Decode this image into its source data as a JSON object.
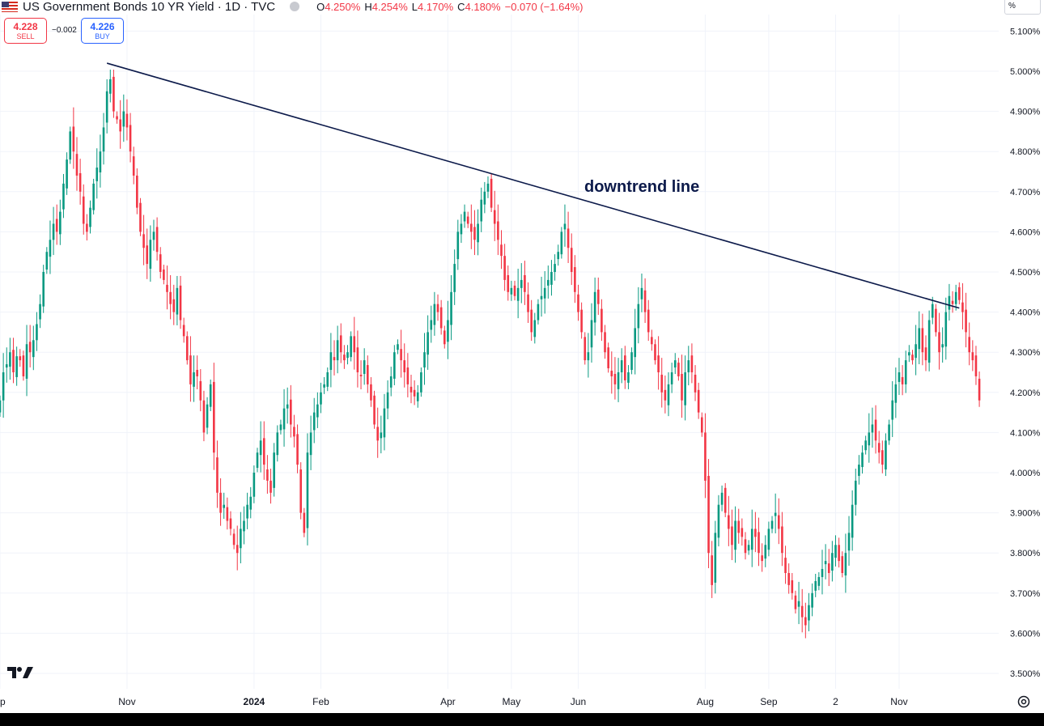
{
  "header": {
    "symbol_title": "US Government Bonds 10 YR Yield · 1D · TVC",
    "flag_icon": "us-flag-icon",
    "ohlc": {
      "o_label": "O",
      "o_value": "4.250%",
      "h_label": "H",
      "h_value": "4.254%",
      "l_label": "L",
      "l_value": "4.170%",
      "c_label": "C",
      "c_value": "4.180%",
      "change": "−0.070 (−1.64%)"
    },
    "value_color": "#f23645"
  },
  "trade": {
    "sell_price": "4.228",
    "sell_label": "SELL",
    "spread": "−0.002",
    "buy_price": "4.226",
    "buy_label": "BUY"
  },
  "axis_unit": "%",
  "annotation": {
    "text": "downtrend line"
  },
  "colors": {
    "up": "#089981",
    "down": "#f23645",
    "trendline": "#0c1a4a",
    "grid": "#f0f3fa"
  },
  "icons": {
    "settings": "settings-icon",
    "logo": "tradingview-logo"
  },
  "chart_data": {
    "type": "candlestick",
    "title": "US Government Bonds 10 YR Yield · 1D · TVC",
    "xlabel": "",
    "ylabel": "",
    "ylim": [
      3.45,
      5.17
    ],
    "y_ticks": [
      "5.100%",
      "5.000%",
      "4.900%",
      "4.800%",
      "4.700%",
      "4.600%",
      "4.500%",
      "4.400%",
      "4.300%",
      "4.200%",
      "4.100%",
      "4.000%",
      "3.900%",
      "3.800%",
      "3.700%",
      "3.600%",
      "3.500%"
    ],
    "y_tick_values": [
      5.1,
      5.0,
      4.9,
      4.8,
      4.7,
      4.6,
      4.5,
      4.4,
      4.3,
      4.2,
      4.1,
      4.0,
      3.9,
      3.8,
      3.7,
      3.6,
      3.5
    ],
    "x_tick_labels": [
      "ep",
      "Nov",
      "2024",
      "Feb",
      "Apr",
      "May",
      "Jun",
      "Aug",
      "Sep",
      "2",
      "Nov"
    ],
    "x_tick_bars": [
      0,
      38,
      76,
      96,
      134,
      153,
      173,
      211,
      230,
      250,
      269
    ],
    "last_bar_index": 287,
    "closes": [
      4.18,
      4.25,
      4.27,
      4.3,
      4.25,
      4.29,
      4.28,
      4.24,
      4.32,
      4.3,
      4.33,
      4.37,
      4.42,
      4.5,
      4.55,
      4.58,
      4.62,
      4.6,
      4.65,
      4.72,
      4.78,
      4.85,
      4.8,
      4.74,
      4.7,
      4.62,
      4.6,
      4.66,
      4.72,
      4.76,
      4.8,
      4.86,
      4.95,
      4.98,
      4.9,
      4.88,
      4.85,
      4.9,
      4.86,
      4.8,
      4.74,
      4.66,
      4.6,
      4.56,
      4.52,
      4.58,
      4.6,
      4.55,
      4.5,
      4.48,
      4.45,
      4.42,
      4.4,
      4.46,
      4.38,
      4.34,
      4.28,
      4.22,
      4.25,
      4.24,
      4.18,
      4.1,
      4.17,
      4.22,
      4.05,
      3.95,
      3.9,
      3.92,
      3.88,
      3.86,
      3.82,
      3.8,
      3.86,
      3.88,
      3.92,
      3.94,
      4.0,
      4.05,
      4.08,
      4.02,
      3.98,
      3.95,
      4.05,
      4.1,
      4.12,
      4.16,
      4.17,
      4.12,
      4.09,
      4.02,
      3.9,
      3.85,
      4.05,
      4.1,
      4.15,
      4.17,
      4.2,
      4.22,
      4.25,
      4.3,
      4.28,
      4.33,
      4.3,
      4.28,
      4.3,
      4.34,
      4.3,
      4.25,
      4.24,
      4.28,
      4.22,
      4.18,
      4.12,
      4.08,
      4.1,
      4.16,
      4.2,
      4.24,
      4.3,
      4.32,
      4.28,
      4.25,
      4.22,
      4.2,
      4.19,
      4.2,
      4.25,
      4.3,
      4.35,
      4.38,
      4.42,
      4.4,
      4.36,
      4.32,
      4.38,
      4.45,
      4.52,
      4.6,
      4.62,
      4.65,
      4.62,
      4.6,
      4.58,
      4.62,
      4.68,
      4.7,
      4.72,
      4.66,
      4.62,
      4.58,
      4.54,
      4.48,
      4.45,
      4.46,
      4.44,
      4.46,
      4.48,
      4.45,
      4.4,
      4.35,
      4.38,
      4.42,
      4.44,
      4.46,
      4.48,
      4.5,
      4.52,
      4.55,
      4.6,
      4.62,
      4.56,
      4.5,
      4.45,
      4.4,
      4.35,
      4.28,
      4.3,
      4.38,
      4.45,
      4.42,
      4.35,
      4.3,
      4.26,
      4.24,
      4.22,
      4.25,
      4.28,
      4.23,
      4.25,
      4.3,
      4.36,
      4.42,
      4.46,
      4.4,
      4.35,
      4.32,
      4.28,
      4.25,
      4.2,
      4.18,
      4.22,
      4.25,
      4.28,
      4.24,
      4.18,
      4.25,
      4.28,
      4.25,
      4.2,
      4.15,
      4.1,
      3.98,
      3.8,
      3.72,
      3.85,
      3.92,
      3.95,
      3.9,
      3.86,
      3.82,
      3.88,
      3.85,
      3.84,
      3.8,
      3.82,
      3.86,
      3.84,
      3.8,
      3.78,
      3.82,
      3.86,
      3.88,
      3.9,
      3.86,
      3.8,
      3.75,
      3.72,
      3.7,
      3.66,
      3.68,
      3.64,
      3.62,
      3.67,
      3.7,
      3.73,
      3.74,
      3.76,
      3.78,
      3.75,
      3.8,
      3.82,
      3.78,
      3.75,
      3.8,
      3.85,
      3.92,
      3.98,
      4.02,
      4.05,
      4.08,
      4.1,
      4.12,
      4.08,
      4.05,
      4.02,
      4.08,
      4.12,
      4.18,
      4.22,
      4.25,
      4.22,
      4.28,
      4.3,
      4.28,
      4.32,
      4.36,
      4.3,
      4.28,
      4.38,
      4.42,
      4.35,
      4.3,
      4.32,
      4.4,
      4.44,
      4.42,
      4.45,
      4.43,
      4.4,
      4.35,
      4.3,
      4.28,
      4.24,
      4.18
    ]
  }
}
